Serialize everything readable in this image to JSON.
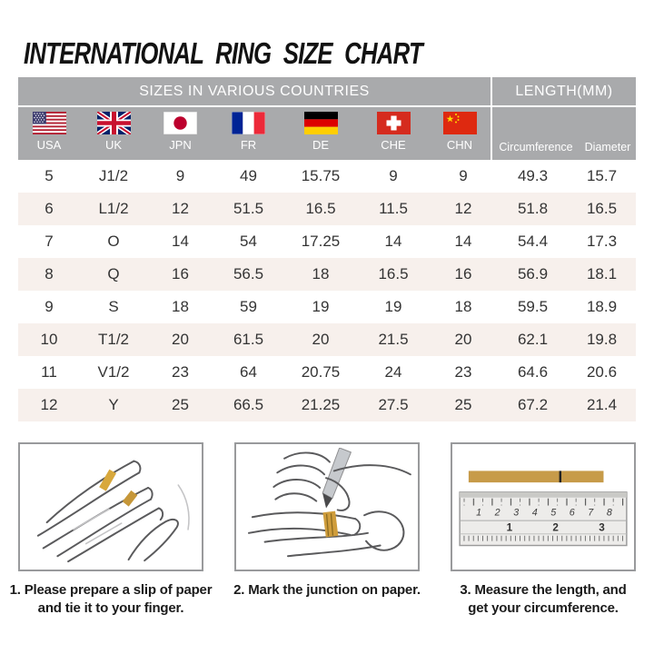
{
  "title": "INTERNATIONAL RING SIZE CHART",
  "table": {
    "group_headers": [
      {
        "label": "SIZES IN VARIOUS COUNTRIES"
      },
      {
        "label": "LENGTH(MM)"
      }
    ],
    "columns": [
      {
        "label": "USA",
        "flag": "usa-flag-icon"
      },
      {
        "label": "UK",
        "flag": "uk-flag-icon"
      },
      {
        "label": "JPN",
        "flag": "japan-flag-icon"
      },
      {
        "label": "FR",
        "flag": "france-flag-icon"
      },
      {
        "label": "DE",
        "flag": "germany-flag-icon"
      },
      {
        "label": "CHE",
        "flag": "switzerland-flag-icon"
      },
      {
        "label": "CHN",
        "flag": "china-flag-icon"
      },
      {
        "label": "Circumference"
      },
      {
        "label": "Diameter"
      }
    ],
    "rows": [
      [
        "5",
        "J1/2",
        "9",
        "49",
        "15.75",
        "9",
        "9",
        "49.3",
        "15.7"
      ],
      [
        "6",
        "L1/2",
        "12",
        "51.5",
        "16.5",
        "11.5",
        "12",
        "51.8",
        "16.5"
      ],
      [
        "7",
        "O",
        "14",
        "54",
        "17.25",
        "14",
        "14",
        "54.4",
        "17.3"
      ],
      [
        "8",
        "Q",
        "16",
        "56.5",
        "18",
        "16.5",
        "16",
        "56.9",
        "18.1"
      ],
      [
        "9",
        "S",
        "18",
        "59",
        "19",
        "19",
        "18",
        "59.5",
        "18.9"
      ],
      [
        "10",
        "T1/2",
        "20",
        "61.5",
        "20",
        "21.5",
        "20",
        "62.1",
        "19.8"
      ],
      [
        "11",
        "V1/2",
        "23",
        "64",
        "20.75",
        "24",
        "23",
        "64.6",
        "20.6"
      ],
      [
        "12",
        "Y",
        "25",
        "66.5",
        "21.25",
        "27.5",
        "25",
        "67.2",
        "21.4"
      ]
    ]
  },
  "steps": [
    {
      "caption_lines": [
        "1. Please prepare a slip of paper",
        "and tie it to your finger."
      ],
      "illustration": "hand-with-slip-illustration"
    },
    {
      "caption_lines": [
        "2. Mark the junction on paper."
      ],
      "illustration": "mark-junction-illustration"
    },
    {
      "caption_lines": [
        "3. Measure the length, and",
        "get your circumference."
      ],
      "illustration": "ruler-measure-illustration"
    }
  ],
  "ruler": {
    "cm_labels": [
      "1",
      "2",
      "3",
      "4",
      "5",
      "6",
      "7",
      "8"
    ],
    "inch_labels": [
      "1",
      "2",
      "3"
    ]
  },
  "colors": {
    "header_bg": "#a9aaac",
    "row_alt_bg": "#f7f0ec",
    "paper_gold": "#cf9d3c",
    "title_color": "#121212",
    "body_text": "#343434"
  }
}
